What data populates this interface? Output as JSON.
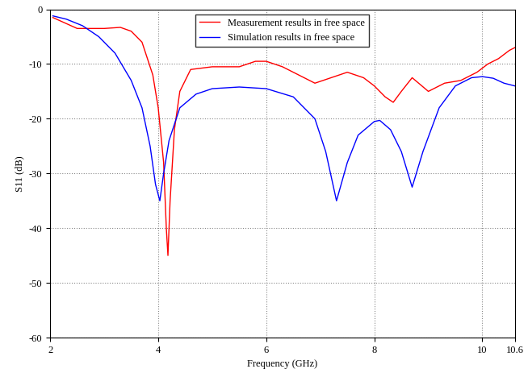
{
  "chart_data": {
    "type": "line",
    "x_label": "Frequency (GHz)",
    "y_label": "S11 (dB)",
    "series": [
      {
        "name": "Measurement results in free space",
        "color": "#ff0000",
        "line_style": "solid",
        "x": [
          2.05,
          2.5,
          3.0,
          3.3,
          3.5,
          3.7,
          3.9,
          4.0,
          4.1,
          4.15,
          4.18,
          4.22,
          4.3,
          4.4,
          4.6,
          5.0,
          5.5,
          5.8,
          6.0,
          6.3,
          6.6,
          6.9,
          7.2,
          7.5,
          7.8,
          8.0,
          8.2,
          8.35,
          8.5,
          8.7,
          9.0,
          9.3,
          9.6,
          9.9,
          10.1,
          10.3,
          10.5,
          10.6
        ],
        "values": [
          -1.5,
          -3.5,
          -3.5,
          -3.3,
          -4,
          -6,
          -12,
          -18,
          -28,
          -40,
          -45,
          -35,
          -22,
          -15,
          -11,
          -10.5,
          -10.5,
          -9.5,
          -9.5,
          -10.5,
          -12,
          -13.5,
          -12.5,
          -11.5,
          -12.5,
          -14,
          -16,
          -17,
          -15,
          -12.5,
          -15,
          -13.5,
          -13,
          -11.5,
          -10,
          -9,
          -7.5,
          -7
        ]
      },
      {
        "name": "Simulation results in free space",
        "color": "#0000ff",
        "line_style": "solid",
        "x": [
          2.05,
          2.3,
          2.6,
          2.9,
          3.2,
          3.5,
          3.7,
          3.85,
          3.95,
          4.03,
          4.1,
          4.2,
          4.4,
          4.7,
          5.0,
          5.5,
          6.0,
          6.5,
          6.9,
          7.1,
          7.3,
          7.5,
          7.7,
          8.0,
          8.1,
          8.3,
          8.5,
          8.7,
          8.9,
          9.2,
          9.5,
          9.8,
          10.0,
          10.2,
          10.4,
          10.6
        ],
        "values": [
          -1.2,
          -1.8,
          -3,
          -5,
          -8,
          -13,
          -18,
          -25,
          -32,
          -35,
          -30,
          -24,
          -18,
          -15.5,
          -14.5,
          -14.2,
          -14.5,
          -16,
          -20,
          -26,
          -35,
          -28,
          -23,
          -20.5,
          -20.3,
          -22,
          -26,
          -32.5,
          -26,
          -18,
          -14,
          -12.5,
          -12.3,
          -12.6,
          -13.5,
          -14
        ]
      }
    ],
    "xlim": [
      2,
      10.6
    ],
    "xticks": [
      2,
      4,
      6,
      8,
      10,
      10.6
    ],
    "ylim": [
      -60,
      0
    ],
    "yticks": [
      -60,
      -50,
      -40,
      -30,
      -20,
      -10,
      0
    ],
    "grid": true,
    "legend": "upper center"
  }
}
